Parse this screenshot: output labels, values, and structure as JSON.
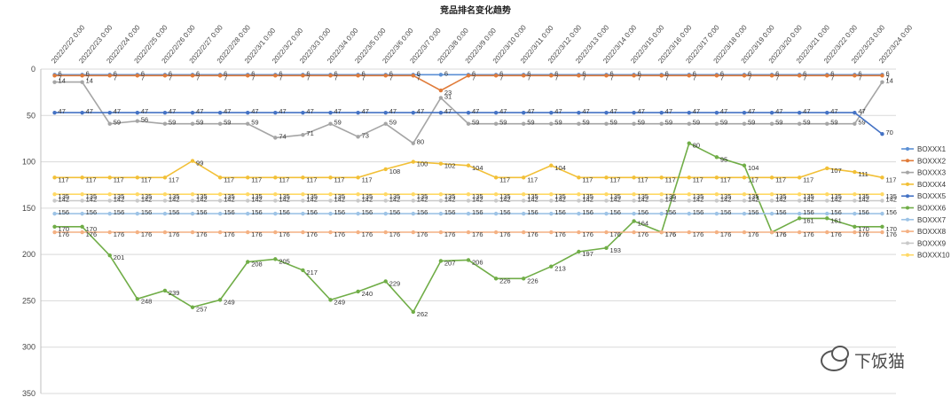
{
  "chart_data": {
    "type": "line",
    "title": "竞品排名变化趋势",
    "xlabel": "",
    "ylabel": "",
    "ylim": [
      0,
      350
    ],
    "y_inverted": true,
    "yticks": [
      "0",
      "50",
      "100",
      "150",
      "200",
      "250",
      "300",
      "350"
    ],
    "grid": true,
    "legend_position": "right",
    "categories": [
      "2022/2/22 0:00",
      "2022/2/23 0:00",
      "2022/2/24 0:00",
      "2022/2/25 0:00",
      "2022/2/26 0:00",
      "2022/2/27 0:00",
      "2022/2/28 0:00",
      "2022/3/1 0:00",
      "2022/3/2 0:00",
      "2022/3/3 0:00",
      "2022/3/4 0:00",
      "2022/3/5 0:00",
      "2022/3/6 0:00",
      "2022/3/7 0:00",
      "2022/3/8 0:00",
      "2022/3/9 0:00",
      "2022/3/10 0:00",
      "2022/3/11 0:00",
      "2022/3/12 0:00",
      "2022/3/13 0:00",
      "2022/3/14 0:00",
      "2022/3/15 0:00",
      "2022/3/16 0:00",
      "2022/3/17 0:00",
      "2022/3/18 0:00",
      "2022/3/19 0:00",
      "2022/3/20 0:00",
      "2022/3/21 0:00",
      "2022/3/22 0:00",
      "2022/3/23 0:00",
      "2022/3/24 0:00"
    ],
    "series": [
      {
        "name": "BOXXX1",
        "color": "#5b8fd4",
        "values": [
          6,
          6,
          6,
          6,
          6,
          6,
          6,
          6,
          6,
          6,
          6,
          6,
          6,
          6,
          6,
          6,
          6,
          6,
          6,
          6,
          6,
          6,
          6,
          6,
          6,
          6,
          6,
          6,
          6,
          6,
          6
        ]
      },
      {
        "name": "BOXXX2",
        "color": "#e07b39",
        "values": [
          7,
          7,
          7,
          7,
          7,
          7,
          7,
          7,
          7,
          7,
          7,
          7,
          7,
          7,
          23,
          7,
          7,
          7,
          7,
          7,
          7,
          7,
          7,
          7,
          7,
          7,
          7,
          7,
          7,
          7,
          7
        ]
      },
      {
        "name": "BOXXX3",
        "color": "#a5a5a5",
        "values": [
          14,
          14,
          59,
          56,
          59,
          59,
          59,
          59,
          74,
          71,
          59,
          73,
          59,
          80,
          31,
          59,
          59,
          59,
          59,
          59,
          59,
          59,
          59,
          59,
          59,
          59,
          59,
          59,
          59,
          59,
          14
        ]
      },
      {
        "name": "BOXXX4",
        "color": "#f2c037",
        "values": [
          117,
          117,
          117,
          117,
          117,
          99,
          117,
          117,
          117,
          117,
          117,
          117,
          108,
          100,
          102,
          104,
          117,
          117,
          104,
          117,
          117,
          117,
          117,
          117,
          117,
          117,
          117,
          117,
          107,
          111,
          117
        ]
      },
      {
        "name": "BOXXX5",
        "color": "#4472c4",
        "values": [
          47,
          47,
          47,
          47,
          47,
          47,
          47,
          47,
          47,
          47,
          47,
          47,
          47,
          47,
          47,
          47,
          47,
          47,
          47,
          47,
          47,
          47,
          47,
          47,
          47,
          47,
          47,
          47,
          47,
          47,
          70
        ]
      },
      {
        "name": "BOXXX6",
        "color": "#70ad47",
        "values": [
          170,
          170,
          201,
          248,
          239,
          257,
          249,
          208,
          205,
          217,
          249,
          240,
          229,
          262,
          207,
          206,
          226,
          226,
          213,
          197,
          193,
          164,
          176,
          80,
          95,
          104,
          176,
          161,
          161,
          170,
          170
        ]
      },
      {
        "name": "BOXXX7",
        "color": "#9dc3e6",
        "values": [
          156,
          156,
          156,
          156,
          156,
          156,
          156,
          156,
          156,
          156,
          156,
          156,
          156,
          156,
          156,
          156,
          156,
          156,
          156,
          156,
          156,
          156,
          156,
          156,
          156,
          156,
          156,
          156,
          156,
          156,
          156
        ]
      },
      {
        "name": "BOXXX8",
        "color": "#f4b183",
        "values": [
          176,
          176,
          176,
          176,
          176,
          176,
          176,
          176,
          176,
          176,
          176,
          176,
          176,
          176,
          176,
          176,
          176,
          176,
          176,
          176,
          176,
          176,
          176,
          176,
          176,
          176,
          176,
          176,
          176,
          176,
          176
        ]
      },
      {
        "name": "BOXXX9",
        "color": "#c9c9c9",
        "values": [
          142,
          142,
          142,
          142,
          142,
          142,
          142,
          142,
          142,
          142,
          142,
          142,
          142,
          142,
          142,
          142,
          142,
          142,
          142,
          142,
          142,
          142,
          142,
          142,
          142,
          142,
          142,
          142,
          142,
          142,
          142
        ]
      },
      {
        "name": "BOXXX10",
        "color": "#ffd966",
        "values": [
          135,
          135,
          135,
          135,
          135,
          135,
          135,
          135,
          135,
          135,
          135,
          135,
          135,
          135,
          135,
          135,
          135,
          135,
          135,
          135,
          135,
          135,
          135,
          135,
          135,
          135,
          135,
          135,
          135,
          135,
          135
        ]
      }
    ]
  },
  "watermark": {
    "text": "下饭猫",
    "icon": "wechat-icon"
  }
}
